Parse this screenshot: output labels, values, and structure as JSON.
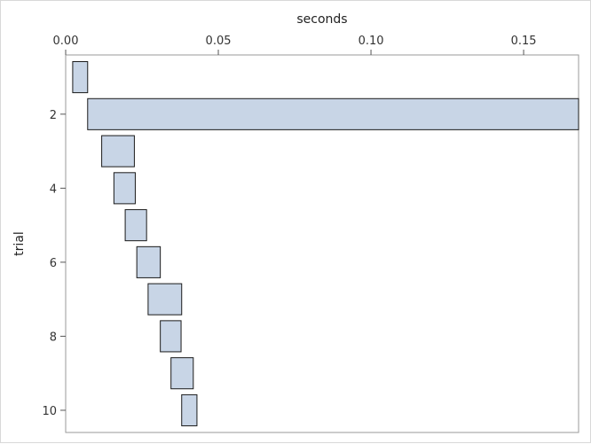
{
  "chart_data": {
    "type": "bar",
    "orientation": "horizontal",
    "title": "",
    "xlabel": "seconds",
    "ylabel": "trial",
    "x_axis_position": "top",
    "xlim": [
      0.0,
      0.168
    ],
    "ylim": [
      0.4,
      10.6
    ],
    "xticks": [
      0.0,
      0.05,
      0.1,
      0.15
    ],
    "xtick_labels": [
      "0.00",
      "0.05",
      "0.10",
      "0.15"
    ],
    "yticks": [
      2,
      4,
      6,
      8,
      10
    ],
    "ytick_labels": [
      "2",
      "4",
      "6",
      "8",
      "10"
    ],
    "grid": false,
    "bar_color": "#c8d5e6",
    "bar_edge_color": "#1a1a1a",
    "bars": [
      {
        "trial": 1,
        "start": 0.0023,
        "end": 0.0072
      },
      {
        "trial": 2,
        "start": 0.0072,
        "end": 0.1685
      },
      {
        "trial": 3,
        "start": 0.0118,
        "end": 0.0225
      },
      {
        "trial": 4,
        "start": 0.0158,
        "end": 0.0228
      },
      {
        "trial": 5,
        "start": 0.0195,
        "end": 0.0265
      },
      {
        "trial": 6,
        "start": 0.0233,
        "end": 0.031
      },
      {
        "trial": 7,
        "start": 0.027,
        "end": 0.038
      },
      {
        "trial": 8,
        "start": 0.031,
        "end": 0.0378
      },
      {
        "trial": 9,
        "start": 0.0345,
        "end": 0.0418
      },
      {
        "trial": 10,
        "start": 0.038,
        "end": 0.043
      }
    ]
  }
}
